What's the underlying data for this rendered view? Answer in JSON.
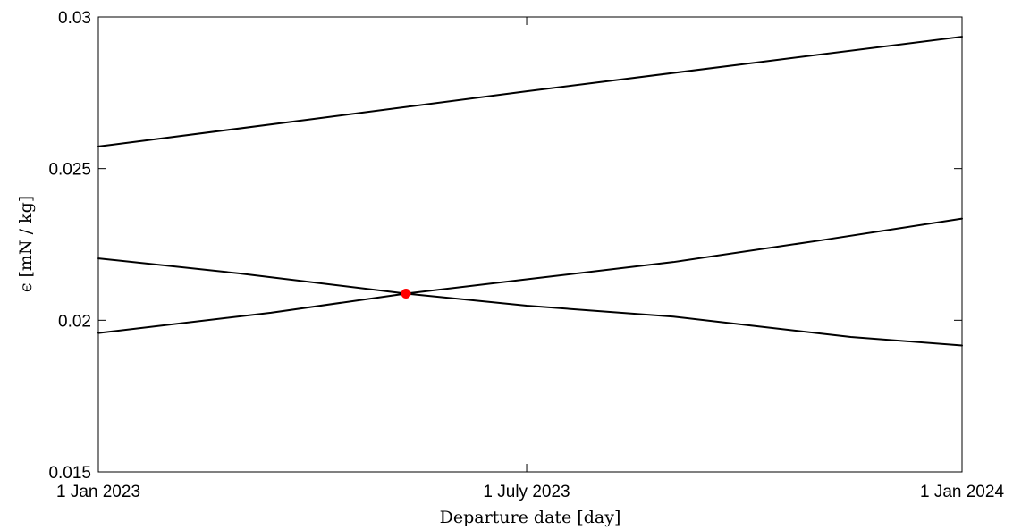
{
  "chart_data": {
    "type": "line",
    "xlabel": "Departure date [day]",
    "ylabel": "ϵ [mN / kg]",
    "xlim": [
      "2023-01-01",
      "2024-01-01"
    ],
    "ylim": [
      0.015,
      0.03
    ],
    "grid": false,
    "x_ticks": [
      {
        "value": "2023-01-01",
        "label": "1 Jan 2023"
      },
      {
        "value": "2023-07-01",
        "label": "1 July 2023"
      },
      {
        "value": "2024-01-01",
        "label": "1 Jan 2024"
      }
    ],
    "y_ticks": [
      {
        "value": 0.015,
        "label": "0.015"
      },
      {
        "value": 0.02,
        "label": "0.02"
      },
      {
        "value": 0.025,
        "label": "0.025"
      },
      {
        "value": 0.03,
        "label": "0.03"
      }
    ],
    "series": [
      {
        "color": "#000000",
        "points": [
          {
            "x": "2023-01-01",
            "y": 0.02573
          },
          {
            "x": "2023-04-01",
            "y": 0.02663
          },
          {
            "x": "2023-07-01",
            "y": 0.02755
          },
          {
            "x": "2023-10-01",
            "y": 0.02845
          },
          {
            "x": "2024-01-01",
            "y": 0.02935
          }
        ]
      },
      {
        "color": "#000000",
        "points": [
          {
            "x": "2023-01-01",
            "y": 0.02204
          },
          {
            "x": "2023-03-01",
            "y": 0.02155
          },
          {
            "x": "2023-05-11",
            "y": 0.02088
          },
          {
            "x": "2023-07-01",
            "y": 0.02048
          },
          {
            "x": "2023-09-01",
            "y": 0.02012
          },
          {
            "x": "2023-10-01",
            "y": 0.01985
          },
          {
            "x": "2023-11-15",
            "y": 0.01945
          },
          {
            "x": "2024-01-01",
            "y": 0.01917
          }
        ]
      },
      {
        "color": "#000000",
        "points": [
          {
            "x": "2023-01-01",
            "y": 0.01958
          },
          {
            "x": "2023-03-15",
            "y": 0.02025
          },
          {
            "x": "2023-05-11",
            "y": 0.02088
          },
          {
            "x": "2023-07-01",
            "y": 0.02135
          },
          {
            "x": "2023-09-01",
            "y": 0.02192
          },
          {
            "x": "2023-11-01",
            "y": 0.02262
          },
          {
            "x": "2024-01-01",
            "y": 0.02335
          }
        ]
      }
    ],
    "markers": [
      {
        "x": "2023-05-11",
        "y": 0.02088,
        "color": "#ff0000"
      }
    ]
  }
}
